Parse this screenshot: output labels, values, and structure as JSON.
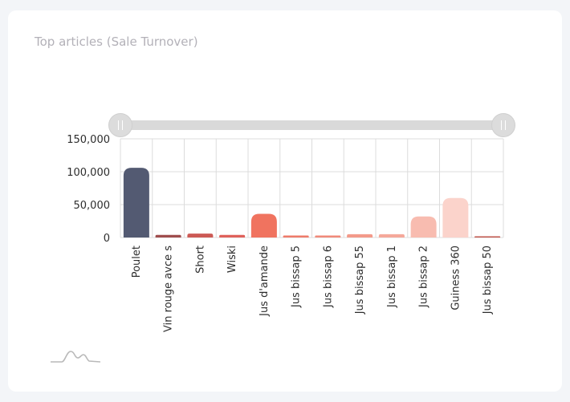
{
  "card": {
    "title": "Top articles (Sale Turnover)"
  },
  "chart_data": {
    "type": "bar",
    "title": "Top articles (Sale Turnover)",
    "xlabel": "",
    "ylabel": "",
    "ylim": [
      0,
      150000
    ],
    "y_ticks": [
      0,
      50000,
      100000,
      150000
    ],
    "y_tick_labels": [
      "0",
      "50,000",
      "100,000",
      "150,000"
    ],
    "grid": true,
    "categories": [
      "Poulet",
      "Vin rouge avce s",
      "Short",
      "Wiski",
      "Jus d'amande",
      "Jus bissap 5",
      "Jus bissap 6",
      "Jus bissap 55",
      "Jus bissap 1",
      "Jus bissap 2",
      "Guiness 360",
      "Jus bissap 50"
    ],
    "values": [
      106000,
      4000,
      6000,
      4000,
      36000,
      3000,
      3000,
      5000,
      5000,
      32000,
      60000,
      500
    ],
    "bar_colors": [
      "#535a72",
      "#9f4d4d",
      "#cc5a55",
      "#df615a",
      "#f0735f",
      "#ee7b6a",
      "#f08a7a",
      "#f39a8a",
      "#f5a89a",
      "#f8bcb0",
      "#fbd3cb",
      "#c0544b"
    ],
    "range_slider": true
  },
  "colors": {
    "gridline": "#dcdcdc",
    "axis_text": "#2d2d2d",
    "title": "#b3b1b8"
  },
  "logo": {
    "icon": "mountain-logo-icon"
  }
}
